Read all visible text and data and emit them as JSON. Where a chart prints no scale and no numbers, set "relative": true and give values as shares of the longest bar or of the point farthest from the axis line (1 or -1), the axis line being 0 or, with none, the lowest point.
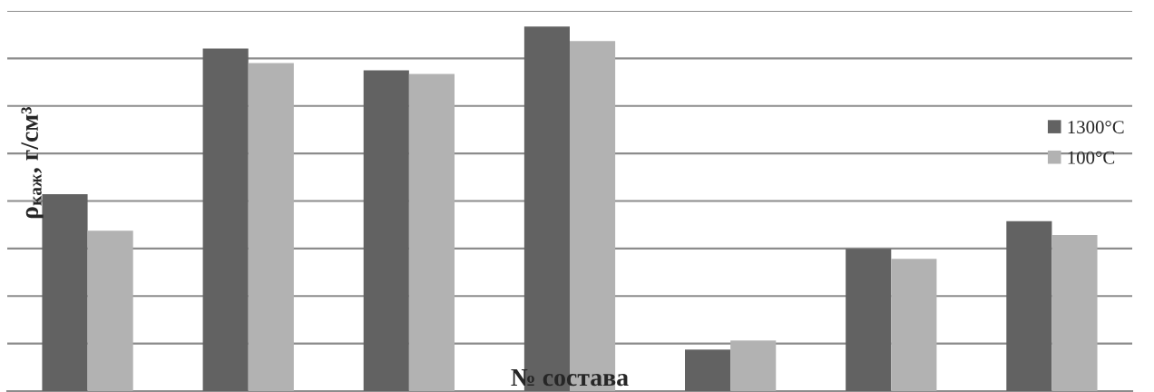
{
  "chart_data": {
    "type": "bar",
    "relative": true,
    "ylabel": "ρ$_{каж}$, г/см³",
    "xlabel": "№ состава",
    "categories": [
      null,
      null,
      null,
      null,
      null,
      null,
      null
    ],
    "series": [
      {
        "name": "1300°C",
        "color": "#626262",
        "values": [
          0.54,
          0.94,
          0.88,
          1.0,
          0.114,
          0.39,
          0.466
        ]
      },
      {
        "name": "100°C",
        "color": "#b2b2b2",
        "values": [
          0.44,
          0.9,
          0.87,
          0.96,
          0.139,
          0.363,
          0.428
        ]
      }
    ],
    "grid": "y",
    "legend": "right"
  }
}
